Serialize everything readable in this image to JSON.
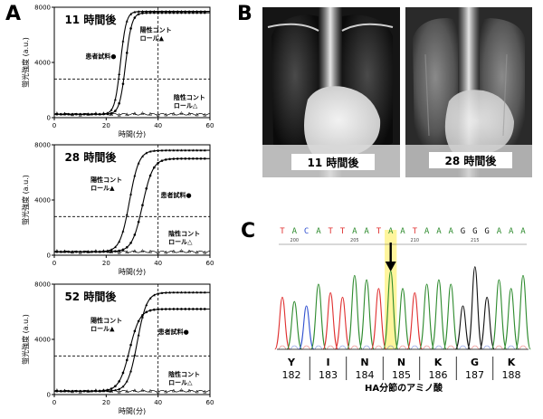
{
  "panel_letters": {
    "a": "A",
    "b": "B",
    "c": "C"
  },
  "curves_common": {
    "y_axis_label": "蛍光強度 (a.u.)",
    "x_axis_label": "時間(分)",
    "x_ticks": [
      "0",
      "20",
      "40",
      "60"
    ],
    "y_ticks": [
      "0",
      "4000",
      "8000"
    ]
  },
  "chart_data": [
    {
      "type": "line",
      "title": "11 時間後",
      "xlim": [
        0,
        60
      ],
      "ylim": [
        0,
        8000
      ],
      "threshold_y": 2800,
      "vline_x": 40,
      "series": [
        {
          "name": "陽性コントロール▲",
          "marker": "triangle-filled",
          "x_mid": 25.5,
          "k": 0.9,
          "plateau": 7700
        },
        {
          "name": "患者試料●",
          "marker": "circle-filled",
          "x_mid": 27.5,
          "k": 0.85,
          "plateau": 7600
        },
        {
          "name": "陰性コントロール△",
          "marker": "triangle-open",
          "flat": 250
        }
      ],
      "labels": {
        "positive": [
          "陽性コント",
          "ロール▲"
        ],
        "patient": [
          "患者試料●"
        ],
        "negative": [
          "陰性コント",
          "ロール△"
        ]
      }
    },
    {
      "type": "line",
      "title": "28 時間後",
      "xlim": [
        0,
        60
      ],
      "ylim": [
        0,
        8000
      ],
      "threshold_y": 2800,
      "vline_x": 40,
      "series": [
        {
          "name": "陽性コントロール▲",
          "marker": "triangle-filled",
          "x_mid": 29,
          "k": 0.55,
          "plateau": 7600
        },
        {
          "name": "患者試料●",
          "marker": "circle-filled",
          "x_mid": 34,
          "k": 0.5,
          "plateau": 7000
        },
        {
          "name": "陰性コントロール△",
          "marker": "triangle-open",
          "flat": 250
        }
      ],
      "labels": {
        "positive": [
          "陽性コント",
          "ロール▲"
        ],
        "patient": [
          "患者試料●"
        ],
        "negative": [
          "陰性コント",
          "ロール△"
        ]
      }
    },
    {
      "type": "line",
      "title": "52 時間後",
      "xlim": [
        0,
        60
      ],
      "ylim": [
        0,
        8000
      ],
      "threshold_y": 2800,
      "vline_x": 40,
      "series": [
        {
          "name": "陽性コントロール▲",
          "marker": "triangle-filled",
          "x_mid": 32,
          "k": 0.55,
          "plateau": 7400
        },
        {
          "name": "患者試料●",
          "marker": "circle-filled",
          "x_mid": 29,
          "k": 0.5,
          "plateau": 6200
        },
        {
          "name": "陰性コントロール△",
          "marker": "triangle-open",
          "flat": 250
        }
      ],
      "labels": {
        "positive": [
          "陽性コント",
          "ロール▲"
        ],
        "patient": [
          "患者試料●"
        ],
        "negative": [
          "陰性コント",
          "ロール△"
        ]
      }
    }
  ],
  "xray": {
    "left_label": "11 時間後",
    "right_label": "28 時間後"
  },
  "sequence": {
    "bases": [
      "T",
      "A",
      "C",
      "A",
      "T",
      "T",
      "A",
      "A",
      "T",
      "A",
      "A",
      "T",
      "A",
      "A",
      "A",
      "G",
      "G",
      "G",
      "A",
      "A",
      "A"
    ],
    "highlight_index": 9,
    "highlight_color": "#fff59d",
    "base_colors": {
      "A": "#2e8b2e",
      "T": "#e03030",
      "C": "#3050d0",
      "G": "#111111"
    },
    "positions": [
      "200",
      "205",
      "210",
      "215"
    ],
    "amino_acids": [
      {
        "aa": "Y",
        "num": "182"
      },
      {
        "aa": "I",
        "num": "183"
      },
      {
        "aa": "N",
        "num": "184"
      },
      {
        "aa": "N",
        "num": "185",
        "color": "#e02020"
      },
      {
        "aa": "K",
        "num": "186"
      },
      {
        "aa": "G",
        "num": "187"
      },
      {
        "aa": "K",
        "num": "188"
      }
    ],
    "caption": "HA分節のアミノ酸"
  }
}
